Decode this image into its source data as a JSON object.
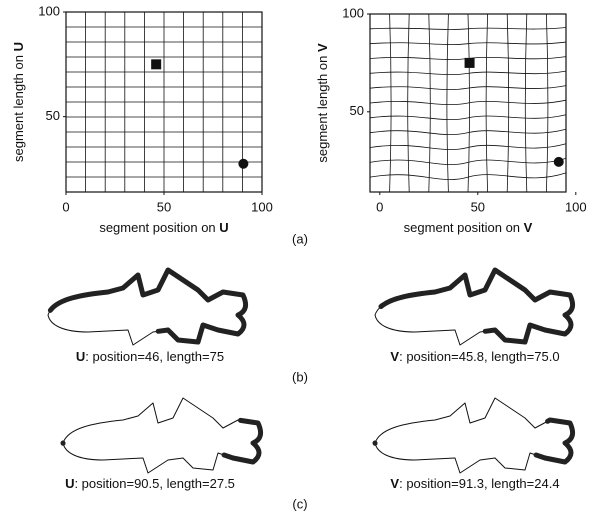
{
  "chart_data": [
    {
      "type": "scatter",
      "xlabel": "segment position on ",
      "xlabel_var": "U",
      "ylabel": "segment length on ",
      "ylabel_var": "U",
      "xlim": [
        0,
        100
      ],
      "ylim": [
        14,
        100
      ],
      "xticks": [
        0,
        50,
        100
      ],
      "yticks": [
        50,
        100
      ],
      "grid": "regular",
      "series": [
        {
          "marker": "square",
          "x": [
            46
          ],
          "values": [
            75
          ]
        },
        {
          "marker": "circle",
          "x": [
            90.5
          ],
          "values": [
            27.5
          ]
        }
      ]
    },
    {
      "type": "scatter",
      "xlabel": "segment position on ",
      "xlabel_var": "V",
      "ylabel": "segment length on ",
      "ylabel_var": "V",
      "xlim": [
        -5,
        95
      ],
      "ylim": [
        9,
        100
      ],
      "xticks": [
        0,
        50,
        100
      ],
      "yticks": [
        50,
        100
      ],
      "grid": "warped",
      "series": [
        {
          "marker": "square",
          "x": [
            45.8
          ],
          "values": [
            75.0
          ]
        },
        {
          "marker": "circle",
          "x": [
            91.3
          ],
          "values": [
            24.4
          ]
        }
      ]
    }
  ],
  "panel_labels": [
    "(a)",
    "(b)",
    "(c)"
  ],
  "captions": [
    {
      "var": "U",
      "text": ": position=46, length=75"
    },
    {
      "var": "V",
      "text": ": position=45.8, length=75.0"
    },
    {
      "var": "U",
      "text": ": position=90.5, length=27.5"
    },
    {
      "var": "V",
      "text": ": position=91.3, length=24.4"
    }
  ]
}
